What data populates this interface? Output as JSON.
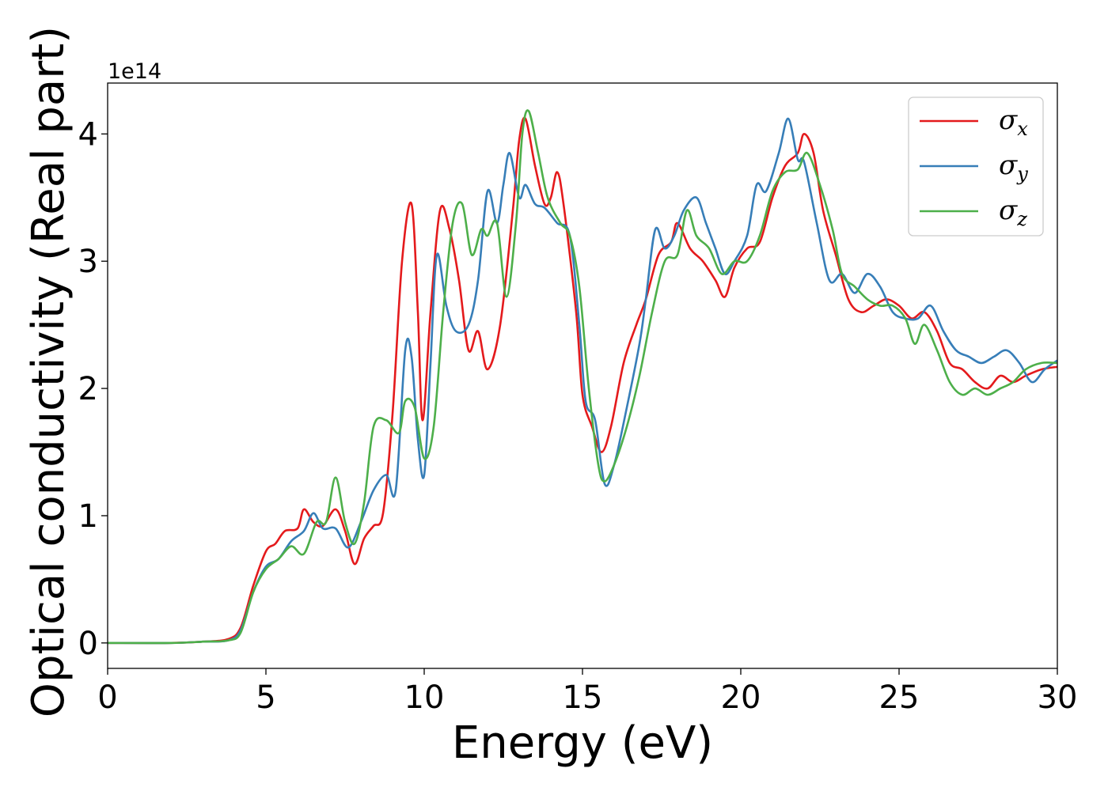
{
  "chart_data": {
    "type": "line",
    "xlabel": "Energy (eV)",
    "ylabel": "Optical conductivity (Real part)",
    "y_offset_label": "1e14",
    "xlim": [
      0,
      30
    ],
    "ylim": [
      -0.2,
      4.4
    ],
    "y_scale_factor": "1e14",
    "x_ticks": [
      0,
      5,
      10,
      15,
      20,
      25,
      30
    ],
    "x_tick_labels": [
      "0",
      "5",
      "10",
      "15",
      "20",
      "25",
      "30"
    ],
    "y_ticks": [
      0,
      1,
      2,
      3,
      4
    ],
    "y_tick_labels": [
      "0",
      "1",
      "2",
      "3",
      "4"
    ],
    "grid": false,
    "legend_position": "top-right",
    "series": [
      {
        "name": "σx",
        "legend_symbol": "σ",
        "legend_sub": "x",
        "color": "#e41a1c",
        "points": [
          [
            0,
            0
          ],
          [
            2,
            0
          ],
          [
            3,
            0.01
          ],
          [
            3.8,
            0.03
          ],
          [
            4.2,
            0.12
          ],
          [
            4.6,
            0.45
          ],
          [
            5,
            0.72
          ],
          [
            5.3,
            0.78
          ],
          [
            5.6,
            0.88
          ],
          [
            6,
            0.9
          ],
          [
            6.2,
            1.05
          ],
          [
            6.5,
            0.95
          ],
          [
            6.8,
            0.92
          ],
          [
            7.2,
            1.05
          ],
          [
            7.5,
            0.88
          ],
          [
            7.8,
            0.62
          ],
          [
            8.1,
            0.82
          ],
          [
            8.4,
            0.92
          ],
          [
            8.7,
            1.02
          ],
          [
            9.0,
            1.8
          ],
          [
            9.3,
            3.0
          ],
          [
            9.6,
            3.45
          ],
          [
            9.8,
            2.6
          ],
          [
            9.95,
            1.75
          ],
          [
            10.2,
            2.6
          ],
          [
            10.5,
            3.4
          ],
          [
            10.8,
            3.25
          ],
          [
            11.1,
            2.85
          ],
          [
            11.4,
            2.3
          ],
          [
            11.7,
            2.45
          ],
          [
            12.0,
            2.15
          ],
          [
            12.4,
            2.5
          ],
          [
            12.8,
            3.4
          ],
          [
            13.0,
            3.95
          ],
          [
            13.2,
            4.12
          ],
          [
            13.5,
            3.75
          ],
          [
            13.8,
            3.45
          ],
          [
            14.0,
            3.5
          ],
          [
            14.2,
            3.7
          ],
          [
            14.4,
            3.45
          ],
          [
            14.8,
            2.6
          ],
          [
            15.0,
            1.95
          ],
          [
            15.3,
            1.7
          ],
          [
            15.6,
            1.5
          ],
          [
            15.9,
            1.7
          ],
          [
            16.3,
            2.2
          ],
          [
            16.7,
            2.5
          ],
          [
            17.0,
            2.7
          ],
          [
            17.4,
            3.05
          ],
          [
            17.8,
            3.15
          ],
          [
            18.0,
            3.3
          ],
          [
            18.4,
            3.1
          ],
          [
            18.8,
            3.0
          ],
          [
            19.2,
            2.85
          ],
          [
            19.5,
            2.72
          ],
          [
            19.8,
            2.95
          ],
          [
            20.2,
            3.1
          ],
          [
            20.6,
            3.15
          ],
          [
            21.0,
            3.5
          ],
          [
            21.4,
            3.75
          ],
          [
            21.8,
            3.85
          ],
          [
            22.0,
            4.0
          ],
          [
            22.3,
            3.85
          ],
          [
            22.6,
            3.4
          ],
          [
            23.0,
            3.05
          ],
          [
            23.4,
            2.7
          ],
          [
            23.8,
            2.6
          ],
          [
            24.2,
            2.65
          ],
          [
            24.6,
            2.7
          ],
          [
            25.0,
            2.65
          ],
          [
            25.4,
            2.55
          ],
          [
            25.8,
            2.6
          ],
          [
            26.2,
            2.45
          ],
          [
            26.6,
            2.2
          ],
          [
            27.0,
            2.15
          ],
          [
            27.4,
            2.05
          ],
          [
            27.8,
            2.0
          ],
          [
            28.2,
            2.1
          ],
          [
            28.6,
            2.05
          ],
          [
            29.0,
            2.1
          ],
          [
            29.5,
            2.15
          ],
          [
            30.0,
            2.17
          ]
        ]
      },
      {
        "name": "σy",
        "legend_symbol": "σ",
        "legend_sub": "y",
        "color": "#377eb8",
        "points": [
          [
            0,
            0
          ],
          [
            2,
            0
          ],
          [
            3,
            0.01
          ],
          [
            3.8,
            0.02
          ],
          [
            4.2,
            0.1
          ],
          [
            4.6,
            0.4
          ],
          [
            5,
            0.6
          ],
          [
            5.4,
            0.66
          ],
          [
            5.8,
            0.8
          ],
          [
            6.2,
            0.88
          ],
          [
            6.5,
            1.02
          ],
          [
            6.8,
            0.9
          ],
          [
            7.2,
            0.9
          ],
          [
            7.6,
            0.75
          ],
          [
            8.0,
            0.95
          ],
          [
            8.4,
            1.2
          ],
          [
            8.8,
            1.32
          ],
          [
            9.1,
            1.2
          ],
          [
            9.4,
            2.3
          ],
          [
            9.6,
            2.25
          ],
          [
            9.8,
            1.6
          ],
          [
            10.0,
            1.32
          ],
          [
            10.2,
            2.2
          ],
          [
            10.4,
            3.05
          ],
          [
            10.7,
            2.65
          ],
          [
            11.0,
            2.45
          ],
          [
            11.4,
            2.5
          ],
          [
            11.7,
            2.85
          ],
          [
            12.0,
            3.55
          ],
          [
            12.3,
            3.3
          ],
          [
            12.5,
            3.6
          ],
          [
            12.7,
            3.85
          ],
          [
            13.0,
            3.5
          ],
          [
            13.2,
            3.6
          ],
          [
            13.5,
            3.45
          ],
          [
            13.8,
            3.42
          ],
          [
            14.2,
            3.3
          ],
          [
            14.6,
            3.2
          ],
          [
            14.9,
            2.5
          ],
          [
            15.1,
            1.9
          ],
          [
            15.4,
            1.75
          ],
          [
            15.7,
            1.25
          ],
          [
            16.0,
            1.4
          ],
          [
            16.4,
            1.85
          ],
          [
            16.8,
            2.35
          ],
          [
            17.0,
            2.7
          ],
          [
            17.3,
            3.25
          ],
          [
            17.6,
            3.1
          ],
          [
            17.9,
            3.2
          ],
          [
            18.2,
            3.4
          ],
          [
            18.6,
            3.5
          ],
          [
            18.9,
            3.3
          ],
          [
            19.2,
            3.1
          ],
          [
            19.5,
            2.9
          ],
          [
            19.8,
            3.0
          ],
          [
            20.2,
            3.2
          ],
          [
            20.5,
            3.6
          ],
          [
            20.8,
            3.55
          ],
          [
            21.2,
            3.85
          ],
          [
            21.5,
            4.12
          ],
          [
            21.8,
            3.8
          ],
          [
            22.0,
            3.78
          ],
          [
            22.4,
            3.3
          ],
          [
            22.8,
            2.85
          ],
          [
            23.2,
            2.9
          ],
          [
            23.6,
            2.75
          ],
          [
            24.0,
            2.9
          ],
          [
            24.4,
            2.8
          ],
          [
            24.8,
            2.6
          ],
          [
            25.2,
            2.55
          ],
          [
            25.6,
            2.55
          ],
          [
            26.0,
            2.65
          ],
          [
            26.4,
            2.45
          ],
          [
            26.8,
            2.3
          ],
          [
            27.2,
            2.25
          ],
          [
            27.6,
            2.2
          ],
          [
            28.0,
            2.25
          ],
          [
            28.4,
            2.3
          ],
          [
            28.8,
            2.2
          ],
          [
            29.2,
            2.05
          ],
          [
            29.6,
            2.15
          ],
          [
            30.0,
            2.22
          ]
        ]
      },
      {
        "name": "σz",
        "legend_symbol": "σ",
        "legend_sub": "z",
        "color": "#4daf4a",
        "points": [
          [
            0,
            0
          ],
          [
            2,
            0
          ],
          [
            3,
            0.01
          ],
          [
            3.8,
            0.02
          ],
          [
            4.2,
            0.08
          ],
          [
            4.6,
            0.4
          ],
          [
            5,
            0.58
          ],
          [
            5.4,
            0.66
          ],
          [
            5.8,
            0.76
          ],
          [
            6.2,
            0.7
          ],
          [
            6.6,
            0.95
          ],
          [
            6.9,
            0.95
          ],
          [
            7.2,
            1.3
          ],
          [
            7.5,
            0.95
          ],
          [
            7.8,
            0.78
          ],
          [
            8.1,
            1.1
          ],
          [
            8.4,
            1.7
          ],
          [
            8.8,
            1.75
          ],
          [
            9.2,
            1.65
          ],
          [
            9.4,
            1.9
          ],
          [
            9.7,
            1.85
          ],
          [
            10.0,
            1.45
          ],
          [
            10.3,
            1.7
          ],
          [
            10.6,
            2.6
          ],
          [
            10.9,
            3.3
          ],
          [
            11.2,
            3.45
          ],
          [
            11.5,
            3.05
          ],
          [
            11.8,
            3.25
          ],
          [
            12.0,
            3.2
          ],
          [
            12.3,
            3.3
          ],
          [
            12.6,
            2.72
          ],
          [
            12.9,
            3.3
          ],
          [
            13.1,
            4.0
          ],
          [
            13.3,
            4.18
          ],
          [
            13.6,
            3.85
          ],
          [
            13.9,
            3.5
          ],
          [
            14.3,
            3.3
          ],
          [
            14.6,
            3.2
          ],
          [
            14.9,
            2.8
          ],
          [
            15.2,
            2.0
          ],
          [
            15.5,
            1.4
          ],
          [
            15.7,
            1.27
          ],
          [
            16.0,
            1.4
          ],
          [
            16.4,
            1.7
          ],
          [
            16.8,
            2.1
          ],
          [
            17.2,
            2.6
          ],
          [
            17.6,
            3.0
          ],
          [
            18.0,
            3.05
          ],
          [
            18.3,
            3.4
          ],
          [
            18.6,
            3.2
          ],
          [
            19.0,
            3.1
          ],
          [
            19.4,
            2.9
          ],
          [
            19.8,
            3.0
          ],
          [
            20.2,
            3.0
          ],
          [
            20.6,
            3.2
          ],
          [
            21.0,
            3.55
          ],
          [
            21.4,
            3.7
          ],
          [
            21.8,
            3.72
          ],
          [
            22.1,
            3.85
          ],
          [
            22.5,
            3.6
          ],
          [
            22.9,
            3.25
          ],
          [
            23.2,
            2.9
          ],
          [
            23.6,
            2.8
          ],
          [
            24.0,
            2.7
          ],
          [
            24.4,
            2.65
          ],
          [
            24.8,
            2.65
          ],
          [
            25.2,
            2.55
          ],
          [
            25.5,
            2.35
          ],
          [
            25.8,
            2.5
          ],
          [
            26.2,
            2.3
          ],
          [
            26.6,
            2.05
          ],
          [
            27.0,
            1.95
          ],
          [
            27.4,
            2.0
          ],
          [
            27.8,
            1.95
          ],
          [
            28.2,
            2.0
          ],
          [
            28.6,
            2.05
          ],
          [
            29.0,
            2.15
          ],
          [
            29.5,
            2.2
          ],
          [
            30.0,
            2.2
          ]
        ]
      }
    ]
  }
}
